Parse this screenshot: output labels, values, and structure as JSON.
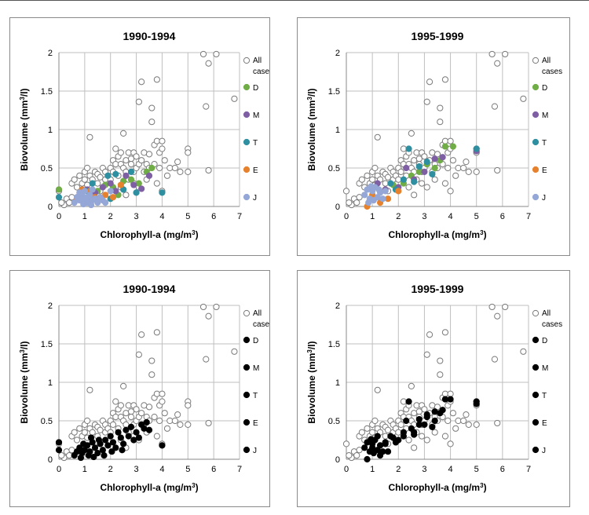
{
  "colors": {
    "D": "#70ad47",
    "M": "#7f5fa3",
    "T": "#2e8fa0",
    "E": "#e6822e",
    "J": "#95a7d6",
    "black": "#000000",
    "grid": "#bfbfbf"
  },
  "chart_data": [
    {
      "type": "scatter",
      "title": "1990-1994",
      "xlabel": "Chlorophyll-a (mg/m3)",
      "ylabel": "Biovolume (mm3/l)",
      "xlim": [
        0,
        7
      ],
      "ylim": [
        0,
        2
      ],
      "xticks": [
        "0",
        "1",
        "2",
        "3",
        "4",
        "5",
        "6",
        "7"
      ],
      "yticks": [
        "0",
        "0.5",
        "1",
        "1.5",
        "2"
      ],
      "legend": [
        "All cases",
        "D",
        "M",
        "T",
        "E",
        "J"
      ],
      "series": [
        {
          "name": "D",
          "color_key": "D",
          "points": [
            [
              0,
              0.22
            ],
            [
              0.9,
              0.12
            ],
            [
              1.5,
              0.2
            ],
            [
              1.8,
              0.28
            ],
            [
              2.1,
              0.25
            ],
            [
              2.5,
              0.33
            ],
            [
              2.8,
              0.35
            ],
            [
              3.1,
              0.3
            ],
            [
              3.4,
              0.45
            ],
            [
              3.6,
              0.5
            ],
            [
              2.3,
              0.15
            ],
            [
              1.2,
              0.1
            ]
          ]
        },
        {
          "name": "M",
          "color_key": "M",
          "points": [
            [
              1.1,
              0.22
            ],
            [
              1.4,
              0.18
            ],
            [
              1.7,
              0.25
            ],
            [
              2.0,
              0.3
            ],
            [
              2.2,
              0.2
            ],
            [
              2.6,
              0.4
            ],
            [
              2.9,
              0.28
            ],
            [
              3.2,
              0.23
            ],
            [
              3.5,
              0.4
            ],
            [
              1.5,
              0.08
            ]
          ]
        },
        {
          "name": "T",
          "color_key": "T",
          "points": [
            [
              0,
              0.12
            ],
            [
              0.8,
              0.15
            ],
            [
              1.3,
              0.3
            ],
            [
              1.6,
              0.1
            ],
            [
              1.9,
              0.4
            ],
            [
              2.2,
              0.42
            ],
            [
              2.5,
              0.22
            ],
            [
              2.8,
              0.45
            ],
            [
              3.0,
              0.18
            ],
            [
              4.0,
              0.18
            ],
            [
              2.0,
              0.1
            ],
            [
              1.1,
              0.2
            ]
          ]
        },
        {
          "name": "E",
          "color_key": "E",
          "points": [
            [
              0.7,
              0.1
            ],
            [
              1.0,
              0.05
            ],
            [
              1.2,
              0.2
            ],
            [
              1.4,
              0.12
            ],
            [
              1.8,
              0.15
            ],
            [
              2.1,
              0.12
            ],
            [
              2.4,
              0.28
            ],
            [
              0.9,
              0.22
            ]
          ]
        },
        {
          "name": "J",
          "color_key": "J",
          "points": [
            [
              0.6,
              0.05
            ],
            [
              0.7,
              0.12
            ],
            [
              0.8,
              0.08
            ],
            [
              0.9,
              0.15
            ],
            [
              1.0,
              0.1
            ],
            [
              1.1,
              0.05
            ],
            [
              1.2,
              0.15
            ],
            [
              1.3,
              0.08
            ],
            [
              1.4,
              0.1
            ],
            [
              1.5,
              0.05
            ],
            [
              1.6,
              0.12
            ],
            [
              1.7,
              0.08
            ],
            [
              0.8,
              0.18
            ],
            [
              1.0,
              0.2
            ],
            [
              1.3,
              0.22
            ],
            [
              1.8,
              0.05
            ],
            [
              2.0,
              0.2
            ],
            [
              1.1,
              0.12
            ],
            [
              0.95,
              0.03
            ],
            [
              1.25,
              0.02
            ]
          ]
        }
      ]
    },
    {
      "type": "scatter",
      "title": "1995-1999",
      "xlabel": "Chlorophyll-a (mg/m3)",
      "ylabel": "Biovolume (mm3/l)",
      "xlim": [
        0,
        7
      ],
      "ylim": [
        0,
        2
      ],
      "xticks": [
        "0",
        "1",
        "2",
        "3",
        "4",
        "5",
        "6",
        "7"
      ],
      "yticks": [
        "0",
        "0.5",
        "1",
        "1.5",
        "2"
      ],
      "legend": [
        "All cases",
        "D",
        "M",
        "T",
        "E",
        "J"
      ],
      "series": [
        {
          "name": "D",
          "color_key": "D",
          "points": [
            [
              3.8,
              0.78
            ],
            [
              4.1,
              0.78
            ],
            [
              2.8,
              0.45
            ],
            [
              3.1,
              0.55
            ],
            [
              3.4,
              0.5
            ],
            [
              2.5,
              0.4
            ],
            [
              2.2,
              0.3
            ],
            [
              1.8,
              0.28
            ],
            [
              3.6,
              0.6
            ]
          ]
        },
        {
          "name": "M",
          "color_key": "M",
          "points": [
            [
              5.0,
              0.72
            ],
            [
              3.4,
              0.62
            ],
            [
              3.0,
              0.45
            ],
            [
              2.6,
              0.35
            ],
            [
              2.0,
              0.25
            ],
            [
              1.5,
              0.22
            ],
            [
              3.7,
              0.64
            ],
            [
              2.3,
              0.5
            ],
            [
              1.2,
              0.3
            ]
          ]
        },
        {
          "name": "T",
          "color_key": "T",
          "points": [
            [
              5.0,
              0.75
            ],
            [
              2.4,
              0.75
            ],
            [
              2.2,
              0.35
            ],
            [
              2.8,
              0.52
            ],
            [
              3.1,
              0.58
            ],
            [
              1.7,
              0.3
            ],
            [
              1.9,
              0.22
            ],
            [
              2.6,
              0.32
            ],
            [
              3.3,
              0.42
            ]
          ]
        },
        {
          "name": "E",
          "color_key": "E",
          "points": [
            [
              0.8,
              0.0
            ],
            [
              1.3,
              0.05
            ],
            [
              1.6,
              0.1
            ],
            [
              1.0,
              0.15
            ],
            [
              2.0,
              0.2
            ]
          ]
        },
        {
          "name": "J",
          "color_key": "J",
          "points": [
            [
              0.7,
              0.15
            ],
            [
              0.8,
              0.22
            ],
            [
              0.9,
              0.1
            ],
            [
              1.0,
              0.2
            ],
            [
              1.1,
              0.25
            ],
            [
              1.2,
              0.12
            ],
            [
              1.3,
              0.18
            ],
            [
              1.4,
              0.1
            ],
            [
              1.5,
              0.2
            ],
            [
              0.85,
              0.05
            ],
            [
              1.05,
              0.08
            ],
            [
              1.25,
              0.22
            ],
            [
              0.95,
              0.26
            ]
          ]
        }
      ]
    },
    {
      "type": "scatter",
      "title": "1990-1994",
      "xlabel": "Chlorophyll-a (mg/m3)",
      "ylabel": "Biovolume (mm3/l)",
      "xlim": [
        0,
        7
      ],
      "ylim": [
        0,
        2
      ],
      "xticks": [
        "0",
        "1",
        "2",
        "3",
        "4",
        "5",
        "6",
        "7"
      ],
      "yticks": [
        "0",
        "0.5",
        "1",
        "1.5",
        "2"
      ],
      "legend": [
        "All cases",
        "D",
        "M",
        "T",
        "E",
        "J"
      ],
      "series": [
        {
          "name": "D, M, T, E, J",
          "color_key": "black",
          "points": [
            [
              0,
              0.22
            ],
            [
              0,
              0.12
            ],
            [
              0.6,
              0.05
            ],
            [
              0.7,
              0.1
            ],
            [
              0.8,
              0.15
            ],
            [
              0.9,
              0.08
            ],
            [
              1.0,
              0.12
            ],
            [
              1.1,
              0.18
            ],
            [
              1.2,
              0.1
            ],
            [
              1.3,
              0.22
            ],
            [
              1.4,
              0.15
            ],
            [
              1.5,
              0.08
            ],
            [
              1.6,
              0.2
            ],
            [
              1.7,
              0.12
            ],
            [
              1.8,
              0.25
            ],
            [
              1.9,
              0.18
            ],
            [
              2.0,
              0.3
            ],
            [
              2.1,
              0.22
            ],
            [
              2.2,
              0.15
            ],
            [
              2.3,
              0.35
            ],
            [
              2.4,
              0.28
            ],
            [
              2.5,
              0.2
            ],
            [
              2.6,
              0.38
            ],
            [
              2.7,
              0.3
            ],
            [
              2.8,
              0.42
            ],
            [
              2.9,
              0.25
            ],
            [
              3.0,
              0.35
            ],
            [
              3.1,
              0.28
            ],
            [
              3.2,
              0.45
            ],
            [
              3.3,
              0.4
            ],
            [
              3.4,
              0.48
            ],
            [
              3.5,
              0.38
            ],
            [
              4.0,
              0.18
            ],
            [
              1.15,
              0.05
            ],
            [
              1.35,
              0.03
            ],
            [
              0.95,
              0.2
            ],
            [
              1.55,
              0.25
            ],
            [
              2.05,
              0.1
            ],
            [
              2.45,
              0.12
            ],
            [
              1.75,
              0.05
            ],
            [
              0.85,
              0.02
            ],
            [
              1.25,
              0.28
            ]
          ]
        }
      ]
    },
    {
      "type": "scatter",
      "title": "1995-1999",
      "xlabel": "Chlorophyll-a (mg/m3)",
      "ylabel": "Biovolume (mm3/l)",
      "xlim": [
        0,
        7
      ],
      "ylim": [
        0,
        2
      ],
      "xticks": [
        "0",
        "1",
        "2",
        "3",
        "4",
        "5",
        "6",
        "7"
      ],
      "yticks": [
        "0",
        "0.5",
        "1",
        "1.5",
        "2"
      ],
      "legend": [
        "All cases",
        "D",
        "M",
        "T",
        "E",
        "J"
      ],
      "series": [
        {
          "name": "D, M, T, E, J",
          "color_key": "black",
          "points": [
            [
              5.0,
              0.75
            ],
            [
              5.0,
              0.72
            ],
            [
              4.0,
              0.78
            ],
            [
              3.8,
              0.78
            ],
            [
              3.7,
              0.64
            ],
            [
              3.6,
              0.6
            ],
            [
              3.4,
              0.62
            ],
            [
              3.4,
              0.5
            ],
            [
              3.3,
              0.42
            ],
            [
              3.1,
              0.58
            ],
            [
              3.1,
              0.55
            ],
            [
              3.0,
              0.45
            ],
            [
              2.8,
              0.52
            ],
            [
              2.8,
              0.45
            ],
            [
              2.6,
              0.35
            ],
            [
              2.5,
              0.4
            ],
            [
              2.4,
              0.75
            ],
            [
              2.3,
              0.5
            ],
            [
              2.2,
              0.35
            ],
            [
              2.2,
              0.3
            ],
            [
              2.0,
              0.25
            ],
            [
              1.9,
              0.22
            ],
            [
              1.8,
              0.28
            ],
            [
              1.7,
              0.3
            ],
            [
              1.6,
              0.1
            ],
            [
              1.5,
              0.22
            ],
            [
              1.5,
              0.2
            ],
            [
              1.4,
              0.1
            ],
            [
              1.3,
              0.18
            ],
            [
              1.3,
              0.05
            ],
            [
              1.2,
              0.3
            ],
            [
              1.2,
              0.12
            ],
            [
              1.1,
              0.25
            ],
            [
              1.0,
              0.2
            ],
            [
              1.0,
              0.15
            ],
            [
              0.9,
              0.1
            ],
            [
              0.8,
              0.22
            ],
            [
              0.8,
              0.0
            ],
            [
              0.7,
              0.15
            ],
            [
              0.95,
              0.26
            ],
            [
              1.05,
              0.08
            ],
            [
              2.6,
              0.32
            ]
          ]
        }
      ]
    }
  ],
  "all_cases_points": [
    [
      0.2,
      0.02
    ],
    [
      0.3,
      0.1
    ],
    [
      0.4,
      0.05
    ],
    [
      0.5,
      0.3
    ],
    [
      0.5,
      0.12
    ],
    [
      0.6,
      0.35
    ],
    [
      0.7,
      0.25
    ],
    [
      0.8,
      0.4
    ],
    [
      0.9,
      0.3
    ],
    [
      1.0,
      0.45
    ],
    [
      1.0,
      0.35
    ],
    [
      1.1,
      0.5
    ],
    [
      1.1,
      0.28
    ],
    [
      1.2,
      0.4
    ],
    [
      1.2,
      0.9
    ],
    [
      1.3,
      0.35
    ],
    [
      1.4,
      0.45
    ],
    [
      1.5,
      0.3
    ],
    [
      1.5,
      0.42
    ],
    [
      1.6,
      0.38
    ],
    [
      1.7,
      0.5
    ],
    [
      1.8,
      0.35
    ],
    [
      1.8,
      0.45
    ],
    [
      1.9,
      0.4
    ],
    [
      2.0,
      0.5
    ],
    [
      2.0,
      0.35
    ],
    [
      2.1,
      0.45
    ],
    [
      2.1,
      0.6
    ],
    [
      2.2,
      0.55
    ],
    [
      2.2,
      0.75
    ],
    [
      2.3,
      0.65
    ],
    [
      2.3,
      0.4
    ],
    [
      2.4,
      0.7
    ],
    [
      2.4,
      0.55
    ],
    [
      2.5,
      0.95
    ],
    [
      2.5,
      0.5
    ],
    [
      2.6,
      0.6
    ],
    [
      2.6,
      0.45
    ],
    [
      2.7,
      0.7
    ],
    [
      2.7,
      0.35
    ],
    [
      2.8,
      0.62
    ],
    [
      2.8,
      0.55
    ],
    [
      2.9,
      0.7
    ],
    [
      2.9,
      0.45
    ],
    [
      3.0,
      0.65
    ],
    [
      3.0,
      0.5
    ],
    [
      3.1,
      1.36
    ],
    [
      3.1,
      0.55
    ],
    [
      3.2,
      1.62
    ],
    [
      3.2,
      0.6
    ],
    [
      3.3,
      0.7
    ],
    [
      3.3,
      0.45
    ],
    [
      3.4,
      0.55
    ],
    [
      3.5,
      0.68
    ],
    [
      3.5,
      0.5
    ],
    [
      3.6,
      1.1
    ],
    [
      3.6,
      1.28
    ],
    [
      3.7,
      0.8
    ],
    [
      3.7,
      0.55
    ],
    [
      3.8,
      1.65
    ],
    [
      3.8,
      0.85
    ],
    [
      3.9,
      0.7
    ],
    [
      3.9,
      0.5
    ],
    [
      4.0,
      0.85
    ],
    [
      4.0,
      0.75
    ],
    [
      4.1,
      0.6
    ],
    [
      4.2,
      0.4
    ],
    [
      4.3,
      0.5
    ],
    [
      4.5,
      0.5
    ],
    [
      4.6,
      0.58
    ],
    [
      4.7,
      0.45
    ],
    [
      5.0,
      0.75
    ],
    [
      5.0,
      0.7
    ],
    [
      5.0,
      0.45
    ],
    [
      5.6,
      1.98
    ],
    [
      5.7,
      1.3
    ],
    [
      5.8,
      0.47
    ],
    [
      5.8,
      1.86
    ],
    [
      6.1,
      1.98
    ],
    [
      6.8,
      1.4
    ],
    [
      0.0,
      0.2
    ],
    [
      0.1,
      0.05
    ],
    [
      2.9,
      0.3
    ],
    [
      3.4,
      0.35
    ],
    [
      2.4,
      0.25
    ],
    [
      1.6,
      0.2
    ],
    [
      3.8,
      0.3
    ],
    [
      4.0,
      0.2
    ],
    [
      2.6,
      0.15
    ],
    [
      3.1,
      0.25
    ]
  ]
}
